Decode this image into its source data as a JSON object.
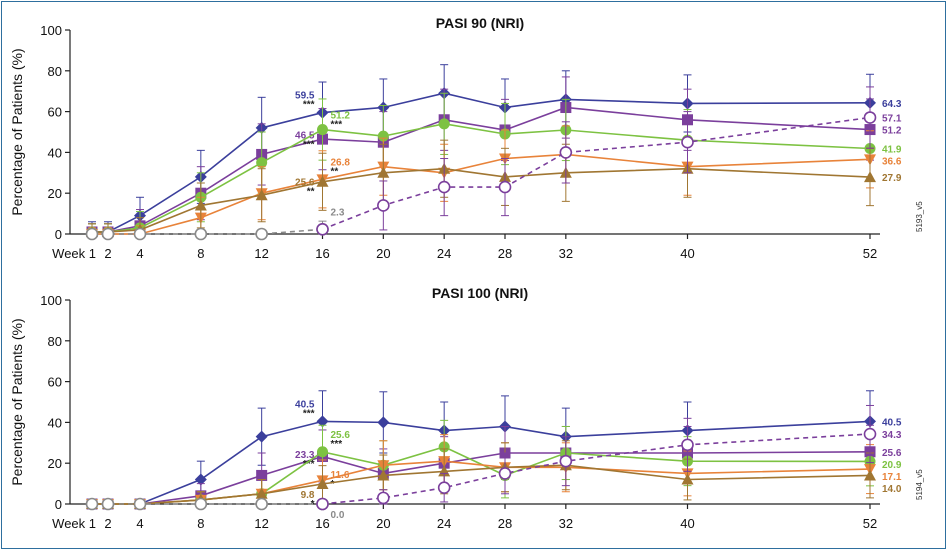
{
  "colors": {
    "blue": "#3b3f9c",
    "purple": "#7b3f9c",
    "green": "#7dc242",
    "orange": "#e8833a",
    "brown": "#a07632",
    "gray": "#8a8a8a"
  },
  "chart_data": [
    {
      "type": "line",
      "title": "PASI 90 (NRI)",
      "ylabel": "Percentage of Patients (%)",
      "ylim": [
        0,
        100
      ],
      "yticks": [
        "0",
        "20",
        "40",
        "60",
        "80",
        "100"
      ],
      "x_first_label": "Week 1",
      "x": [
        1,
        2,
        4,
        8,
        12,
        16,
        20,
        24,
        28,
        32,
        40,
        52
      ],
      "xtick_labels": [
        "Week 1",
        "2",
        "4",
        "8",
        "12",
        "16",
        "20",
        "24",
        "28",
        "32",
        "40",
        "52"
      ],
      "side_label": "5193_v5",
      "series": [
        {
          "color": "blue",
          "marker": "diamond",
          "dash": false,
          "values": [
            1,
            1,
            9,
            28,
            52,
            59.5,
            62,
            69,
            62,
            66,
            64,
            64.3
          ],
          "err": [
            5,
            5,
            9,
            13,
            15,
            15,
            14,
            14,
            14,
            14,
            14,
            14
          ],
          "end_label": "64.3",
          "annot": {
            "x": 16,
            "text": "59.5",
            "stars": "***"
          }
        },
        {
          "color": "purple",
          "marker": "square",
          "dash": false,
          "values": [
            1,
            1,
            4,
            20,
            39,
            46.5,
            45,
            56,
            51,
            62,
            56,
            51.2
          ],
          "err": [
            4,
            4,
            8,
            13,
            15,
            15,
            15,
            15,
            15,
            15,
            15,
            15
          ],
          "end_label": "51.2",
          "annot": {
            "x": 16,
            "text": "46.5",
            "stars": "***"
          }
        },
        {
          "color": "green",
          "marker": "circle",
          "dash": false,
          "values": [
            1,
            1,
            3,
            18,
            35,
            51.2,
            48,
            54,
            49,
            51,
            46,
            41.9
          ],
          "err": [
            4,
            4,
            8,
            12,
            15,
            15,
            15,
            15,
            15,
            15,
            15,
            15
          ],
          "end_label": "41.9",
          "annot": {
            "x": 16,
            "text": "51.2",
            "stars": "***"
          }
        },
        {
          "color": "orange",
          "marker": "triangle-down",
          "dash": false,
          "values": [
            0,
            0,
            0,
            8,
            20,
            26.8,
            33,
            30,
            37,
            39,
            33,
            36.6
          ],
          "err": [
            3,
            3,
            4,
            10,
            13,
            14,
            14,
            14,
            14,
            14,
            14,
            14
          ],
          "end_label": "36.6",
          "annot": {
            "x": 16,
            "text": "26.8",
            "stars": "**"
          }
        },
        {
          "color": "brown",
          "marker": "triangle-up",
          "dash": false,
          "values": [
            1,
            1,
            2,
            14,
            19,
            25.6,
            30,
            32,
            28,
            30,
            32,
            27.9
          ],
          "err": [
            4,
            4,
            6,
            11,
            13,
            14,
            14,
            14,
            14,
            14,
            14,
            14
          ],
          "end_label": "27.9",
          "annot": {
            "x": 16,
            "text": "25.6",
            "stars": "**"
          }
        },
        {
          "color": "gray",
          "marker": "open-circle",
          "dash": true,
          "values": [
            0,
            0,
            0,
            0,
            0,
            2.3,
            null,
            null,
            null,
            null,
            null,
            null
          ],
          "err": [
            0,
            0,
            0,
            0,
            0,
            4,
            0,
            0,
            0,
            0,
            0,
            0
          ],
          "annot": {
            "x": 16,
            "text": "2.3",
            "stars": ""
          }
        },
        {
          "color": "purple",
          "marker": "open-circle",
          "dash": true,
          "values": [
            null,
            null,
            null,
            null,
            null,
            2.3,
            14,
            23,
            23,
            40,
            45,
            57.1
          ],
          "err": [
            0,
            0,
            0,
            0,
            0,
            0,
            12,
            14,
            14,
            15,
            15,
            15
          ],
          "end_label": "57.1"
        }
      ]
    },
    {
      "type": "line",
      "title": "PASI 100 (NRI)",
      "ylabel": "Percentage of Patients (%)",
      "ylim": [
        0,
        100
      ],
      "yticks": [
        "0",
        "20",
        "40",
        "60",
        "80",
        "100"
      ],
      "x_first_label": "Week 1",
      "x": [
        1,
        2,
        4,
        8,
        12,
        16,
        20,
        24,
        28,
        32,
        40,
        52
      ],
      "xtick_labels": [
        "Week 1",
        "2",
        "4",
        "8",
        "12",
        "16",
        "20",
        "24",
        "28",
        "32",
        "40",
        "52"
      ],
      "side_label": "5194_v5",
      "series": [
        {
          "color": "blue",
          "marker": "diamond",
          "dash": false,
          "values": [
            0,
            0,
            0,
            12,
            33,
            40.5,
            40,
            36,
            38,
            33,
            36,
            40.5
          ],
          "err": [
            0,
            0,
            0,
            9,
            14,
            15,
            15,
            14,
            15,
            14,
            14,
            15
          ],
          "end_label": "40.5",
          "annot": {
            "x": 16,
            "text": "40.5",
            "stars": "***"
          }
        },
        {
          "color": "purple",
          "marker": "square",
          "dash": false,
          "values": [
            0,
            0,
            0,
            4,
            14,
            23.3,
            15,
            20,
            25,
            25,
            25,
            25.6
          ],
          "err": [
            0,
            0,
            0,
            6,
            11,
            13,
            12,
            13,
            13,
            13,
            13,
            13
          ],
          "end_label": "25.6",
          "annot": {
            "x": 16,
            "text": "23.3",
            "stars": "***"
          }
        },
        {
          "color": "green",
          "marker": "circle",
          "dash": false,
          "values": [
            0,
            0,
            0,
            2,
            5,
            25.6,
            19,
            28,
            14,
            25,
            21,
            20.9
          ],
          "err": [
            0,
            0,
            0,
            4,
            7,
            13,
            12,
            13,
            11,
            13,
            12,
            12
          ],
          "end_label": "20.9",
          "annot": {
            "x": 16,
            "text": "25.6",
            "stars": "***"
          }
        },
        {
          "color": "orange",
          "marker": "triangle-down",
          "dash": false,
          "values": [
            0,
            0,
            0,
            2,
            5,
            11.6,
            19,
            21,
            18,
            18,
            15,
            17.1
          ],
          "err": [
            0,
            0,
            0,
            4,
            7,
            10,
            12,
            13,
            12,
            12,
            11,
            12
          ],
          "end_label": "17.1",
          "annot": {
            "x": 16,
            "text": "11.6",
            "stars": "*"
          }
        },
        {
          "color": "brown",
          "marker": "triangle-up",
          "dash": false,
          "values": [
            0,
            0,
            0,
            2,
            5,
            9.8,
            14,
            16,
            18,
            19,
            12,
            14.0
          ],
          "err": [
            0,
            0,
            0,
            4,
            7,
            9,
            10,
            11,
            12,
            12,
            10,
            11
          ],
          "end_label": "14.0",
          "annot": {
            "x": 16,
            "text": "9.8",
            "stars": "*"
          }
        },
        {
          "color": "gray",
          "marker": "open-circle",
          "dash": true,
          "values": [
            0,
            0,
            0,
            0,
            0,
            0.0,
            null,
            null,
            null,
            null,
            null,
            null
          ],
          "err": [
            0,
            0,
            0,
            0,
            0,
            0,
            0,
            0,
            0,
            0,
            0,
            0
          ],
          "annot": {
            "x": 16,
            "text": "0.0",
            "stars": ""
          }
        },
        {
          "color": "purple",
          "marker": "open-circle",
          "dash": true,
          "values": [
            null,
            null,
            null,
            null,
            null,
            0,
            3,
            8,
            15,
            21,
            29,
            34.3
          ],
          "err": [
            0,
            0,
            0,
            0,
            0,
            0,
            4,
            7,
            10,
            12,
            13,
            14
          ],
          "end_label": "34.3"
        }
      ]
    }
  ]
}
